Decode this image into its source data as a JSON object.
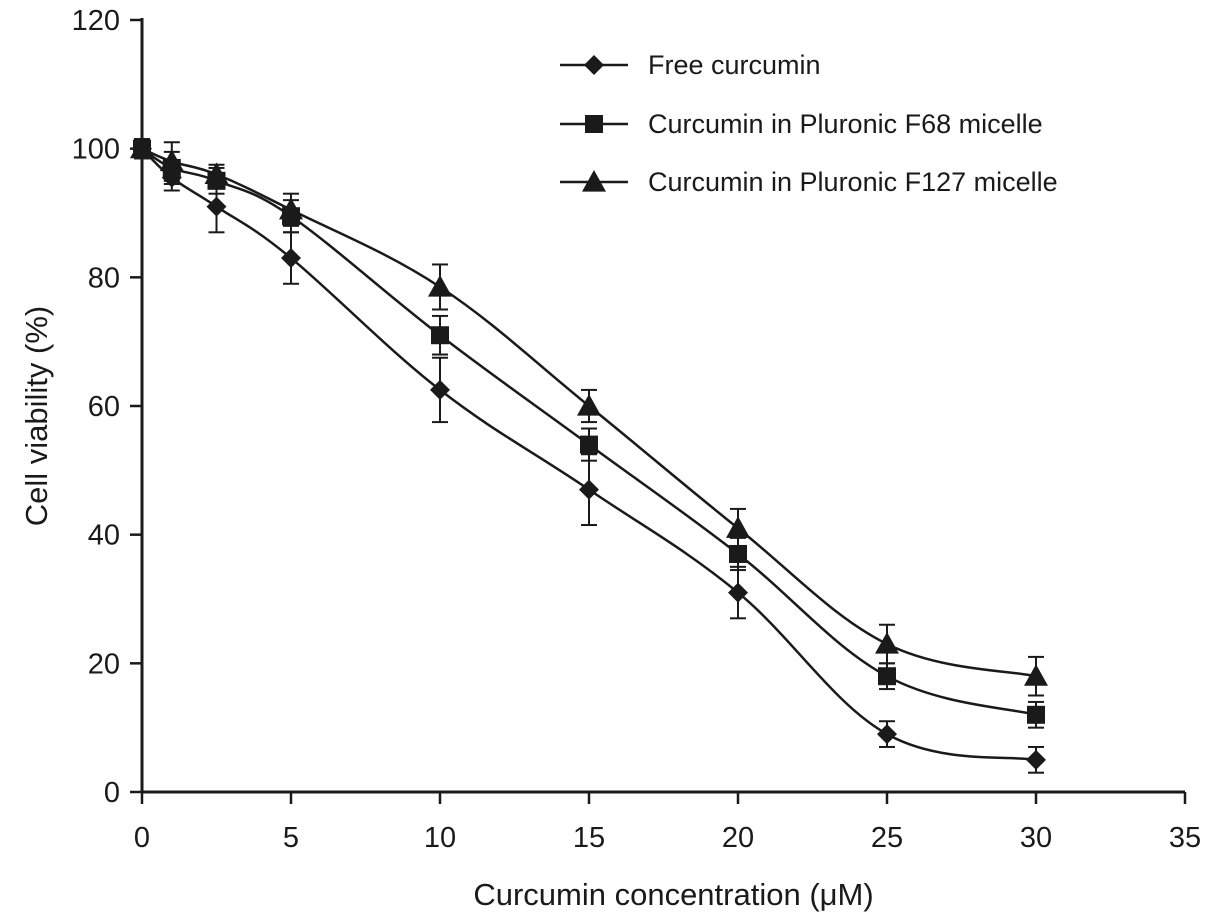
{
  "chart_data": {
    "type": "line",
    "xlabel": "Curcumin concentration (μM)",
    "ylabel": "Cell viability (%)",
    "xlim": [
      0,
      35
    ],
    "ylim": [
      0,
      120
    ],
    "x_ticks": [
      0,
      5,
      10,
      15,
      20,
      25,
      30,
      35
    ],
    "y_ticks": [
      0,
      20,
      40,
      60,
      80,
      100,
      120
    ],
    "grid": false,
    "legend_position": "top-right",
    "series": [
      {
        "name": "Free curcumin",
        "marker": "diamond",
        "color": "#1a1a1a",
        "x": [
          0,
          1,
          2.5,
          5,
          10,
          15,
          20,
          25,
          30
        ],
        "y": [
          100,
          95.5,
          91,
          83,
          62.5,
          47,
          31,
          9,
          5
        ],
        "error": [
          1.5,
          2,
          4,
          4,
          5,
          5.5,
          4,
          2,
          2
        ]
      },
      {
        "name": "Curcumin in Pluronic F68 micelle",
        "marker": "square",
        "color": "#1a1a1a",
        "x": [
          0,
          1,
          2.5,
          5,
          10,
          15,
          20,
          25,
          30
        ],
        "y": [
          100,
          97,
          95,
          89.5,
          71,
          54,
          37,
          18,
          12
        ],
        "error": [
          1.5,
          2.5,
          2,
          2.5,
          3,
          2.5,
          2.5,
          2,
          2
        ]
      },
      {
        "name": "Curcumin in Pluronic F127 micelle",
        "marker": "triangle",
        "color": "#1a1a1a",
        "x": [
          0,
          1,
          2.5,
          5,
          10,
          15,
          20,
          25,
          30
        ],
        "y": [
          100,
          98,
          96,
          90.5,
          78.5,
          60,
          41,
          23,
          18
        ],
        "error": [
          1.5,
          3,
          1.5,
          2.5,
          3.5,
          2.5,
          3,
          3,
          3
        ]
      }
    ]
  }
}
